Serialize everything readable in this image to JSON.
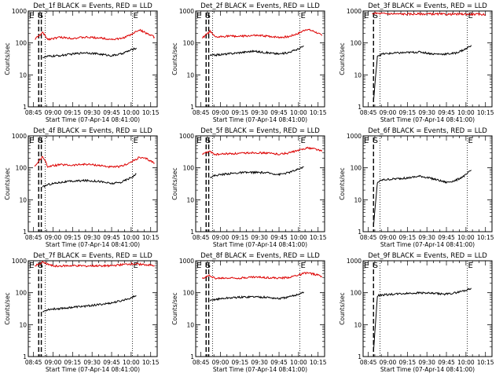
{
  "figure": {
    "title_suffix": "BLACK = Events, RED = LLD",
    "xlabel": "Start Time (07-Apr-14 08:41:00)",
    "ylabel": "Counts/sec"
  },
  "chart_data": [
    {
      "type": "line",
      "title": "Det_1f BLACK = Events, RED = LLD",
      "xlabel": "Start Time (07-Apr-14 08:41:00)",
      "ylabel": "Counts/sec",
      "yscale": "log",
      "ylim": [
        1,
        1000
      ],
      "xlim": [
        "08:41",
        "10:20"
      ],
      "x_ticks": [
        "08:45",
        "09:00",
        "09:15",
        "09:30",
        "09:45",
        "10:00",
        "10:15"
      ],
      "y_ticks": [
        "1",
        "10",
        "100",
        "1000"
      ],
      "markers": [
        {
          "label": "E",
          "x": "08:41"
        },
        {
          "label": "S",
          "x": "08:48"
        },
        {
          "label": "E",
          "x": "10:01"
        }
      ],
      "dashed_x": [
        "08:49",
        "08:51"
      ],
      "dotted_x": [
        "08:54",
        "10:01"
      ],
      "series": [
        {
          "name": "LLD",
          "color": "#dd0000",
          "x": [
            "08:46",
            "08:52",
            "08:56",
            "09:05",
            "09:15",
            "09:25",
            "09:35",
            "09:45",
            "09:52",
            "10:00",
            "10:06",
            "10:12",
            "10:18"
          ],
          "y": [
            130,
            210,
            130,
            150,
            140,
            150,
            145,
            130,
            135,
            180,
            260,
            200,
            150
          ]
        },
        {
          "name": "Events",
          "color": "#000000",
          "x": [
            "08:52",
            "08:56",
            "09:05",
            "09:15",
            "09:25",
            "09:35",
            "09:45",
            "09:52",
            "10:00",
            "10:04"
          ],
          "y": [
            35,
            38,
            40,
            45,
            50,
            45,
            40,
            45,
            60,
            70
          ]
        }
      ]
    },
    {
      "type": "line",
      "title": "Det_2f BLACK = Events, RED = LLD",
      "xlabel": "Start Time (07-Apr-14 08:41:00)",
      "ylabel": "Counts/sec",
      "yscale": "log",
      "ylim": [
        1,
        1000
      ],
      "xlim": [
        "08:41",
        "10:20"
      ],
      "x_ticks": [
        "08:45",
        "09:00",
        "09:15",
        "09:30",
        "09:45",
        "10:00",
        "10:15"
      ],
      "y_ticks": [
        "1",
        "10",
        "100",
        "1000"
      ],
      "markers": [
        {
          "label": "E",
          "x": "08:41"
        },
        {
          "label": "S",
          "x": "08:48"
        },
        {
          "label": "E",
          "x": "10:01"
        }
      ],
      "dashed_x": [
        "08:49",
        "08:51"
      ],
      "dotted_x": [
        "08:54",
        "10:01"
      ],
      "series": [
        {
          "name": "LLD",
          "color": "#dd0000",
          "x": [
            "08:46",
            "08:52",
            "08:56",
            "09:05",
            "09:15",
            "09:25",
            "09:35",
            "09:45",
            "09:52",
            "10:00",
            "10:06",
            "10:12",
            "10:18"
          ],
          "y": [
            140,
            230,
            150,
            165,
            160,
            170,
            165,
            150,
            155,
            200,
            270,
            230,
            170
          ]
        },
        {
          "name": "Events",
          "color": "#000000",
          "x": [
            "08:52",
            "08:56",
            "09:05",
            "09:15",
            "09:25",
            "09:35",
            "09:45",
            "09:52",
            "10:00",
            "10:04"
          ],
          "y": [
            40,
            42,
            45,
            50,
            55,
            50,
            45,
            50,
            65,
            80
          ]
        }
      ]
    },
    {
      "type": "line",
      "title": "Det_3f BLACK = Events, RED = LLD",
      "xlabel": "Start Time (07-Apr-14 08:41:00)",
      "ylabel": "Counts/sec",
      "yscale": "log",
      "ylim": [
        1,
        1000
      ],
      "xlim": [
        "08:41",
        "10:20"
      ],
      "x_ticks": [
        "08:45",
        "09:00",
        "09:15",
        "09:30",
        "09:45",
        "10:00",
        "10:15"
      ],
      "y_ticks": [
        "1",
        "10",
        "100",
        "1000"
      ],
      "markers": [
        {
          "label": "E",
          "x": "08:41"
        },
        {
          "label": "S",
          "x": "08:48"
        },
        {
          "label": "E",
          "x": "10:01"
        }
      ],
      "dashed_x": [
        "08:49"
      ],
      "dotted_x": [
        "08:54",
        "10:01"
      ],
      "series": [
        {
          "name": "LLD",
          "color": "#dd0000",
          "x": [
            "08:48",
            "09:00",
            "09:15",
            "09:30",
            "09:45",
            "10:00",
            "10:15"
          ],
          "y": [
            850,
            820,
            800,
            810,
            790,
            800,
            780
          ]
        },
        {
          "name": "Events",
          "color": "#000000",
          "x": [
            "08:49",
            "08:52",
            "08:56",
            "09:05",
            "09:15",
            "09:25",
            "09:35",
            "09:45",
            "09:52",
            "10:00",
            "10:04"
          ],
          "y": [
            1.5,
            40,
            45,
            48,
            50,
            52,
            45,
            45,
            48,
            65,
            85
          ]
        }
      ]
    },
    {
      "type": "line",
      "title": "Det_4f BLACK = Events, RED = LLD",
      "xlabel": "Start Time (07-Apr-14 08:41:00)",
      "ylabel": "Counts/sec",
      "yscale": "log",
      "ylim": [
        1,
        1000
      ],
      "xlim": [
        "08:41",
        "10:20"
      ],
      "x_ticks": [
        "08:45",
        "09:00",
        "09:15",
        "09:30",
        "09:45",
        "10:00",
        "10:15"
      ],
      "y_ticks": [
        "1",
        "10",
        "100",
        "1000"
      ],
      "markers": [
        {
          "label": "E",
          "x": "08:41"
        },
        {
          "label": "S",
          "x": "08:48"
        },
        {
          "label": "E",
          "x": "10:01"
        }
      ],
      "dashed_x": [
        "08:49",
        "08:51"
      ],
      "dotted_x": [
        "08:54",
        "10:01"
      ],
      "series": [
        {
          "name": "LLD",
          "color": "#dd0000",
          "x": [
            "08:46",
            "08:52",
            "08:56",
            "09:05",
            "09:15",
            "09:25",
            "09:35",
            "09:45",
            "09:52",
            "10:00",
            "10:06",
            "10:12",
            "10:18"
          ],
          "y": [
            110,
            230,
            110,
            125,
            120,
            130,
            120,
            105,
            110,
            150,
            210,
            190,
            140
          ]
        },
        {
          "name": "Events",
          "color": "#000000",
          "x": [
            "08:52",
            "08:56",
            "09:05",
            "09:15",
            "09:25",
            "09:35",
            "09:45",
            "09:52",
            "10:00",
            "10:04"
          ],
          "y": [
            25,
            30,
            35,
            38,
            40,
            38,
            32,
            35,
            50,
            65
          ]
        }
      ]
    },
    {
      "type": "line",
      "title": "Det_5f BLACK = Events, RED = LLD",
      "xlabel": "Start Time (07-Apr-14 08:41:00)",
      "ylabel": "Counts/sec",
      "yscale": "log",
      "ylim": [
        1,
        1000
      ],
      "xlim": [
        "08:41",
        "10:20"
      ],
      "x_ticks": [
        "08:45",
        "09:00",
        "09:15",
        "09:30",
        "09:45",
        "10:00",
        "10:15"
      ],
      "y_ticks": [
        "1",
        "10",
        "100",
        "1000"
      ],
      "markers": [
        {
          "label": "E",
          "x": "08:41"
        },
        {
          "label": "S",
          "x": "08:48"
        },
        {
          "label": "E",
          "x": "10:01"
        }
      ],
      "dashed_x": [
        "08:49",
        "08:51"
      ],
      "dotted_x": [
        "08:54",
        "10:01"
      ],
      "series": [
        {
          "name": "LLD",
          "color": "#dd0000",
          "x": [
            "08:46",
            "08:52",
            "08:56",
            "09:05",
            "09:15",
            "09:25",
            "09:35",
            "09:45",
            "09:52",
            "10:00",
            "10:06",
            "10:12",
            "10:18"
          ],
          "y": [
            270,
            330,
            260,
            275,
            280,
            300,
            290,
            270,
            290,
            350,
            420,
            400,
            330
          ]
        },
        {
          "name": "Events",
          "color": "#000000",
          "x": [
            "08:52",
            "08:56",
            "09:05",
            "09:15",
            "09:25",
            "09:35",
            "09:45",
            "09:52",
            "10:00",
            "10:04"
          ],
          "y": [
            50,
            58,
            65,
            70,
            72,
            70,
            62,
            70,
            90,
            110
          ]
        }
      ]
    },
    {
      "type": "line",
      "title": "Det_6f BLACK = Events, RED = LLD",
      "xlabel": "Start Time (07-Apr-14 08:41:00)",
      "ylabel": "Counts/sec",
      "yscale": "log",
      "ylim": [
        1,
        1000
      ],
      "xlim": [
        "08:41",
        "10:20"
      ],
      "x_ticks": [
        "08:45",
        "09:00",
        "09:15",
        "09:30",
        "09:45",
        "10:00",
        "10:15"
      ],
      "y_ticks": [
        "1",
        "10",
        "100",
        "1000"
      ],
      "markers": [
        {
          "label": "E",
          "x": "08:41"
        },
        {
          "label": "S",
          "x": "08:48"
        },
        {
          "label": "E",
          "x": "10:01"
        }
      ],
      "dashed_x": [
        "08:49"
      ],
      "dotted_x": [
        "08:54",
        "10:01"
      ],
      "series": [
        {
          "name": "Events",
          "color": "#000000",
          "x": [
            "08:49",
            "08:52",
            "08:56",
            "09:05",
            "09:15",
            "09:25",
            "09:35",
            "09:45",
            "09:52",
            "10:00",
            "10:04"
          ],
          "y": [
            1.5,
            35,
            42,
            45,
            48,
            55,
            45,
            35,
            40,
            60,
            85
          ]
        }
      ]
    },
    {
      "type": "line",
      "title": "Det_7f BLACK = Events, RED = LLD",
      "xlabel": "Start Time (07-Apr-14 08:41:00)",
      "ylabel": "Counts/sec",
      "yscale": "log",
      "ylim": [
        1,
        1000
      ],
      "xlim": [
        "08:41",
        "10:20"
      ],
      "x_ticks": [
        "08:45",
        "09:00",
        "09:15",
        "09:30",
        "09:45",
        "10:00",
        "10:15"
      ],
      "y_ticks": [
        "1",
        "10",
        "100",
        "1000"
      ],
      "markers": [
        {
          "label": "E",
          "x": "08:41"
        },
        {
          "label": "S",
          "x": "08:48"
        },
        {
          "label": "E",
          "x": "10:01"
        }
      ],
      "dashed_x": [
        "08:49",
        "08:51"
      ],
      "dotted_x": [
        "08:54",
        "10:01"
      ],
      "series": [
        {
          "name": "LLD",
          "color": "#dd0000",
          "x": [
            "08:46",
            "08:52",
            "09:00",
            "09:15",
            "09:30",
            "09:45",
            "10:00",
            "10:10",
            "10:18"
          ],
          "y": [
            700,
            900,
            680,
            700,
            690,
            700,
            800,
            760,
            700
          ]
        },
        {
          "name": "Events",
          "color": "#000000",
          "x": [
            "08:52",
            "08:56",
            "09:05",
            "09:15",
            "09:25",
            "09:35",
            "09:45",
            "09:52",
            "10:00",
            "10:04"
          ],
          "y": [
            25,
            30,
            32,
            35,
            38,
            42,
            48,
            55,
            70,
            80
          ]
        }
      ]
    },
    {
      "type": "line",
      "title": "Det_8f BLACK = Events, RED = LLD",
      "xlabel": "Start Time (07-Apr-14 08:41:00)",
      "ylabel": "Counts/sec",
      "yscale": "log",
      "ylim": [
        1,
        1000
      ],
      "xlim": [
        "08:41",
        "10:20"
      ],
      "x_ticks": [
        "08:45",
        "09:00",
        "09:15",
        "09:30",
        "09:45",
        "10:00",
        "10:15"
      ],
      "y_ticks": [
        "1",
        "10",
        "100",
        "1000"
      ],
      "markers": [
        {
          "label": "E",
          "x": "08:41"
        },
        {
          "label": "S",
          "x": "08:48"
        },
        {
          "label": "E",
          "x": "10:01"
        }
      ],
      "dashed_x": [
        "08:49",
        "08:51"
      ],
      "dotted_x": [
        "08:54",
        "10:01"
      ],
      "series": [
        {
          "name": "LLD",
          "color": "#dd0000",
          "x": [
            "08:46",
            "08:52",
            "08:56",
            "09:05",
            "09:15",
            "09:25",
            "09:35",
            "09:45",
            "09:52",
            "10:00",
            "10:06",
            "10:12",
            "10:18"
          ],
          "y": [
            280,
            350,
            280,
            290,
            290,
            310,
            300,
            285,
            300,
            360,
            420,
            380,
            330
          ]
        },
        {
          "name": "Events",
          "color": "#000000",
          "x": [
            "08:52",
            "08:56",
            "09:05",
            "09:15",
            "09:25",
            "09:35",
            "09:45",
            "09:52",
            "10:00",
            "10:04"
          ],
          "y": [
            55,
            62,
            68,
            72,
            75,
            72,
            65,
            72,
            90,
            105
          ]
        }
      ]
    },
    {
      "type": "line",
      "title": "Det_9f BLACK = Events, RED = LLD",
      "xlabel": "Start Time (07-Apr-14 08:41:00)",
      "ylabel": "Counts/sec",
      "yscale": "log",
      "ylim": [
        1,
        1000
      ],
      "xlim": [
        "08:41",
        "10:20"
      ],
      "x_ticks": [
        "08:45",
        "09:00",
        "09:15",
        "09:30",
        "09:45",
        "10:00",
        "10:15"
      ],
      "y_ticks": [
        "1",
        "10",
        "100",
        "1000"
      ],
      "markers": [
        {
          "label": "E",
          "x": "08:41"
        },
        {
          "label": "S",
          "x": "08:48"
        },
        {
          "label": "E",
          "x": "10:01"
        }
      ],
      "dashed_x": [
        "08:49"
      ],
      "dotted_x": [
        "08:54",
        "10:01"
      ],
      "series": [
        {
          "name": "Events",
          "color": "#000000",
          "x": [
            "08:49",
            "08:52",
            "08:56",
            "09:05",
            "09:15",
            "09:25",
            "09:35",
            "09:45",
            "09:52",
            "10:00",
            "10:04"
          ],
          "y": [
            1.5,
            80,
            85,
            90,
            95,
            100,
            95,
            90,
            100,
            120,
            140
          ]
        }
      ]
    }
  ]
}
